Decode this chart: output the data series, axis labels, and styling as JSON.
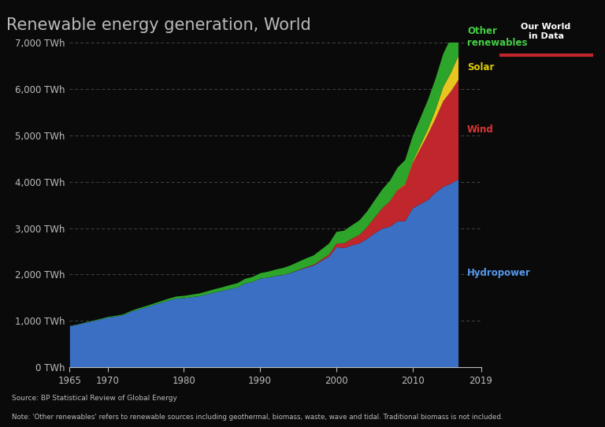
{
  "title": "Renewable energy generation, World",
  "background_color": "#0a0a0a",
  "plot_bg_color": "#0a0a0a",
  "text_color": "#bbbbbb",
  "years": [
    1965,
    1966,
    1967,
    1968,
    1969,
    1970,
    1971,
    1972,
    1973,
    1974,
    1975,
    1976,
    1977,
    1978,
    1979,
    1980,
    1981,
    1982,
    1983,
    1984,
    1985,
    1986,
    1987,
    1988,
    1989,
    1990,
    1991,
    1992,
    1993,
    1994,
    1995,
    1996,
    1997,
    1998,
    1999,
    2000,
    2001,
    2002,
    2003,
    2004,
    2005,
    2006,
    2007,
    2008,
    2009,
    2010,
    2011,
    2012,
    2013,
    2014,
    2015,
    2016
  ],
  "hydro": [
    895,
    925,
    965,
    1000,
    1040,
    1080,
    1100,
    1130,
    1200,
    1255,
    1300,
    1350,
    1400,
    1450,
    1490,
    1498,
    1520,
    1540,
    1580,
    1620,
    1655,
    1695,
    1730,
    1815,
    1850,
    1920,
    1940,
    1975,
    1998,
    2040,
    2100,
    2155,
    2200,
    2300,
    2390,
    2598,
    2578,
    2638,
    2678,
    2778,
    2898,
    2998,
    3038,
    3158,
    3158,
    3438,
    3528,
    3618,
    3778,
    3898,
    3968,
    4058
  ],
  "wind": [
    0,
    0,
    0,
    0,
    0,
    0,
    0,
    0,
    0,
    0,
    0,
    0,
    0,
    0,
    0,
    0,
    0,
    0,
    0,
    0,
    0,
    0,
    0,
    0,
    0,
    0,
    1,
    2,
    3,
    5,
    8,
    13,
    20,
    30,
    50,
    80,
    105,
    140,
    185,
    250,
    340,
    440,
    550,
    670,
    790,
    980,
    1200,
    1420,
    1600,
    1850,
    1990,
    2150
  ],
  "solar": [
    0,
    0,
    0,
    0,
    0,
    0,
    0,
    0,
    0,
    0,
    0,
    0,
    0,
    0,
    0,
    0,
    0,
    0,
    0,
    0,
    0,
    0,
    0,
    0,
    0,
    0,
    0,
    0,
    0,
    0,
    0,
    0,
    0,
    0,
    0,
    0,
    1,
    1,
    2,
    3,
    4,
    6,
    8,
    12,
    20,
    35,
    70,
    110,
    190,
    310,
    400,
    520
  ],
  "other": [
    5,
    7,
    9,
    11,
    13,
    15,
    17,
    19,
    22,
    25,
    28,
    32,
    36,
    40,
    45,
    50,
    55,
    60,
    65,
    72,
    78,
    85,
    92,
    100,
    108,
    118,
    128,
    138,
    150,
    163,
    175,
    188,
    202,
    218,
    235,
    252,
    270,
    290,
    312,
    338,
    368,
    400,
    435,
    475,
    510,
    548,
    588,
    630,
    672,
    712,
    750,
    790
  ],
  "ylim": [
    0,
    7000
  ],
  "yticks": [
    0,
    1000,
    2000,
    3000,
    4000,
    5000,
    6000,
    7000
  ],
  "xticks": [
    1965,
    1970,
    1980,
    1990,
    2000,
    2010,
    2019
  ],
  "hydro_color": "#3a6fc4",
  "wind_color": "#c0272d",
  "solar_color": "#e8c520",
  "other_color": "#2da52a",
  "grid_color": "#444444",
  "owid_bg_color": "#1a3a6b",
  "owid_border_color": "#c0272d",
  "source_text": "Source: BP Statistical Review of Global Energy",
  "note_text": "Note: 'Other renewables' refers to renewable sources including geothermal, biomass, waste, wave and tidal. Traditional biomass is not included.",
  "hydro_label_color": "#5599ee",
  "wind_label_color": "#dd3333",
  "solar_label_color": "#ddcc00",
  "other_label_color": "#44cc44"
}
